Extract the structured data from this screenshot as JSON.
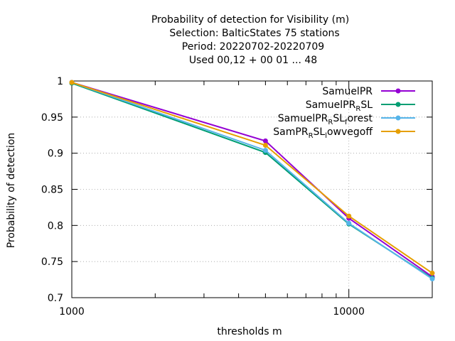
{
  "chart_data": {
    "type": "line",
    "title_lines": [
      "Probability of detection  for Visibility (m)",
      "Selection: BalticStates     75 stations",
      "Period: 20220702-20220709",
      "Used  00,12  + 00 01 ... 48"
    ],
    "xlabel": "thresholds m",
    "ylabel": "Probability of detection",
    "x_scale": "log",
    "xlim": [
      1000,
      20000
    ],
    "ylim": [
      0.7,
      1.0
    ],
    "x_ticks": [
      1000,
      10000
    ],
    "x_tick_labels": [
      "1000",
      "10000"
    ],
    "y_ticks": [
      0.7,
      0.75,
      0.8,
      0.85,
      0.9,
      0.95,
      1.0
    ],
    "y_tick_labels": [
      "0.7",
      "0.75",
      "0.8",
      "0.85",
      "0.9",
      "0.95",
      "1"
    ],
    "grid": true,
    "legend_position": "top-right",
    "x": [
      1000,
      5000,
      10000,
      20000
    ],
    "series": [
      {
        "name": "SamuelPR",
        "legend_parts": [
          [
            "SamuelPR",
            ""
          ]
        ],
        "color": "#9400d3",
        "values": [
          0.998,
          0.917,
          0.81,
          0.729
        ]
      },
      {
        "name": "SamuelPR_RSL",
        "legend_parts": [
          [
            "SamuelPR",
            ""
          ],
          [
            "R",
            "sub"
          ],
          [
            "SL",
            ""
          ]
        ],
        "color": "#009e73",
        "values": [
          0.997,
          0.901,
          0.802,
          0.727
        ]
      },
      {
        "name": "SamuelPR_RSL_forest",
        "legend_parts": [
          [
            "SamuelPR",
            ""
          ],
          [
            "R",
            "sub"
          ],
          [
            "SL",
            ""
          ],
          [
            "f",
            "sub"
          ],
          [
            "orest",
            ""
          ]
        ],
        "color": "#56b4e9",
        "values": [
          0.998,
          0.904,
          0.803,
          0.726
        ]
      },
      {
        "name": "SamPR_RSL_lowvegoff",
        "legend_parts": [
          [
            "SamPR",
            ""
          ],
          [
            "R",
            "sub"
          ],
          [
            "SL",
            ""
          ],
          [
            "l",
            "sub"
          ],
          [
            "owvegoff",
            ""
          ]
        ],
        "color": "#e69f00",
        "values": [
          0.998,
          0.911,
          0.813,
          0.734
        ]
      }
    ]
  }
}
